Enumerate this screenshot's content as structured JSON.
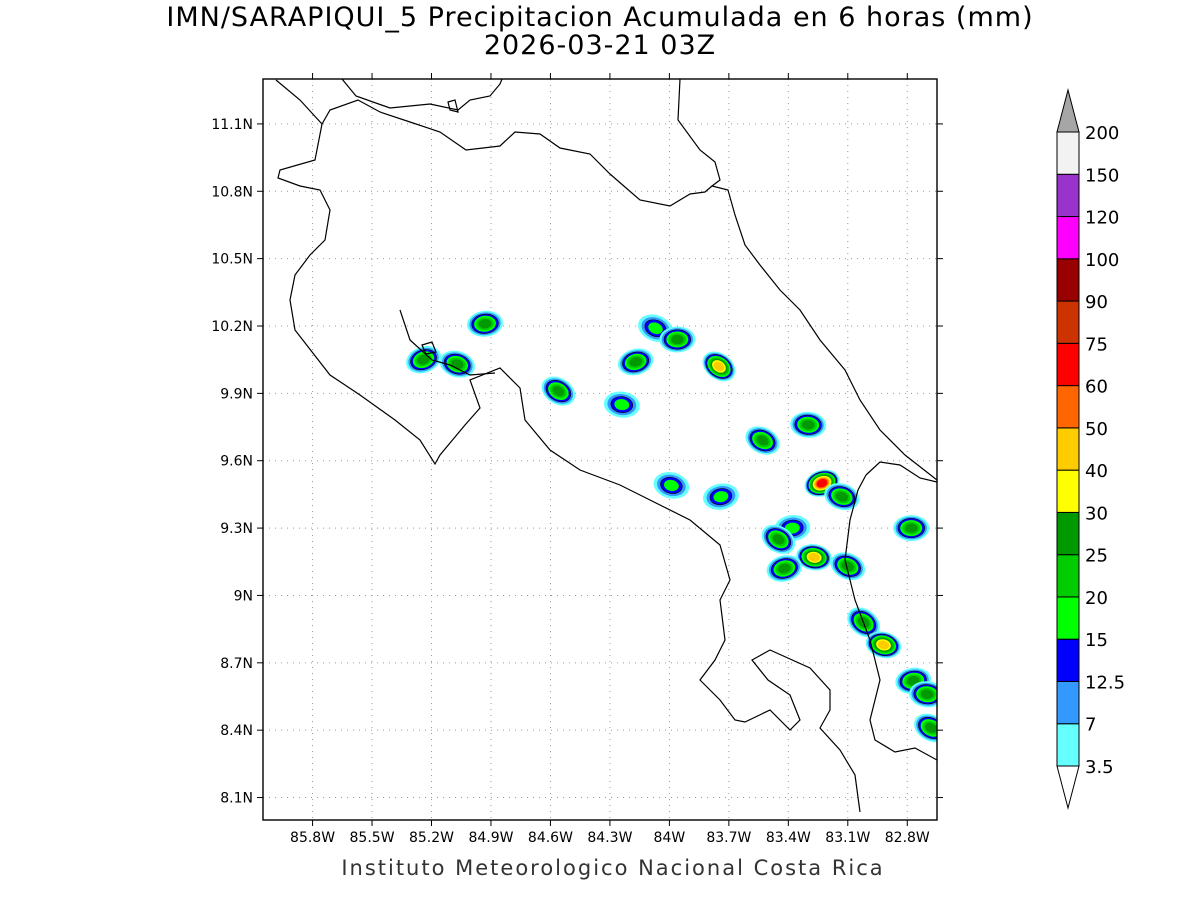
{
  "title": {
    "line1": "IMN/SARAPIQUI_5 Precipitacion Acumulada en 6 horas (mm)",
    "line2": "2026-03-21 03Z"
  },
  "credit": "Instituto Meteorologico Nacional Costa Rica",
  "map": {
    "lon_range": [
      -86.05,
      -82.65
    ],
    "lat_range": [
      8.0,
      11.3
    ],
    "lon_ticks": [
      {
        "value": -85.8,
        "label": "85.8W"
      },
      {
        "value": -85.5,
        "label": "85.5W"
      },
      {
        "value": -85.2,
        "label": "85.2W"
      },
      {
        "value": -84.9,
        "label": "84.9W"
      },
      {
        "value": -84.6,
        "label": "84.6W"
      },
      {
        "value": -84.3,
        "label": "84.3W"
      },
      {
        "value": -84.0,
        "label": "84W"
      },
      {
        "value": -83.7,
        "label": "83.7W"
      },
      {
        "value": -83.4,
        "label": "83.4W"
      },
      {
        "value": -83.1,
        "label": "83.1W"
      },
      {
        "value": -82.8,
        "label": "82.8W"
      }
    ],
    "lat_ticks": [
      {
        "value": 8.1,
        "label": "8.1N"
      },
      {
        "value": 8.4,
        "label": "8.4N"
      },
      {
        "value": 8.7,
        "label": "8.7N"
      },
      {
        "value": 9.0,
        "label": "9N"
      },
      {
        "value": 9.3,
        "label": "9.3N"
      },
      {
        "value": 9.6,
        "label": "9.6N"
      },
      {
        "value": 9.9,
        "label": "9.9N"
      },
      {
        "value": 10.2,
        "label": "10.2N"
      },
      {
        "value": 10.5,
        "label": "10.5N"
      },
      {
        "value": 10.8,
        "label": "10.8N"
      },
      {
        "value": 11.1,
        "label": "11.1N"
      }
    ],
    "grid": true,
    "precip_cells": [
      {
        "lon": -85.24,
        "lat": 10.05,
        "max_mm": 25
      },
      {
        "lon": -85.07,
        "lat": 10.03,
        "max_mm": 25
      },
      {
        "lon": -84.93,
        "lat": 10.21,
        "max_mm": 25
      },
      {
        "lon": -84.56,
        "lat": 9.91,
        "max_mm": 25
      },
      {
        "lon": -84.24,
        "lat": 9.85,
        "max_mm": 15
      },
      {
        "lon": -84.17,
        "lat": 10.04,
        "max_mm": 25
      },
      {
        "lon": -84.07,
        "lat": 10.19,
        "max_mm": 15
      },
      {
        "lon": -83.96,
        "lat": 10.14,
        "max_mm": 25
      },
      {
        "lon": -83.75,
        "lat": 10.02,
        "max_mm": 40
      },
      {
        "lon": -83.99,
        "lat": 9.49,
        "max_mm": 15
      },
      {
        "lon": -83.74,
        "lat": 9.44,
        "max_mm": 15
      },
      {
        "lon": -83.53,
        "lat": 9.69,
        "max_mm": 25
      },
      {
        "lon": -83.3,
        "lat": 9.76,
        "max_mm": 25
      },
      {
        "lon": -83.23,
        "lat": 9.5,
        "max_mm": 60
      },
      {
        "lon": -83.13,
        "lat": 9.44,
        "max_mm": 25
      },
      {
        "lon": -83.38,
        "lat": 9.3,
        "max_mm": 15
      },
      {
        "lon": -83.45,
        "lat": 9.25,
        "max_mm": 25
      },
      {
        "lon": -83.27,
        "lat": 9.17,
        "max_mm": 40
      },
      {
        "lon": -83.42,
        "lat": 9.12,
        "max_mm": 25
      },
      {
        "lon": -83.1,
        "lat": 9.13,
        "max_mm": 25
      },
      {
        "lon": -82.78,
        "lat": 9.3,
        "max_mm": 25
      },
      {
        "lon": -83.02,
        "lat": 8.88,
        "max_mm": 25
      },
      {
        "lon": -82.92,
        "lat": 8.78,
        "max_mm": 40
      },
      {
        "lon": -82.77,
        "lat": 8.62,
        "max_mm": 25
      },
      {
        "lon": -82.68,
        "lat": 8.41,
        "max_mm": 25
      },
      {
        "lon": -82.7,
        "lat": 8.56,
        "max_mm": 25
      }
    ]
  },
  "colorbar": {
    "levels": [
      {
        "value": "3.5",
        "color": "#66ffff"
      },
      {
        "value": "7",
        "color": "#3399ff"
      },
      {
        "value": "12.5",
        "color": "#0000ff"
      },
      {
        "value": "15",
        "color": "#00ff00"
      },
      {
        "value": "20",
        "color": "#00cc00"
      },
      {
        "value": "25",
        "color": "#009900"
      },
      {
        "value": "30",
        "color": "#ffff00"
      },
      {
        "value": "40",
        "color": "#ffcc00"
      },
      {
        "value": "50",
        "color": "#ff6600"
      },
      {
        "value": "60",
        "color": "#ff0000"
      },
      {
        "value": "75",
        "color": "#cc3300"
      },
      {
        "value": "90",
        "color": "#990000"
      },
      {
        "value": "100",
        "color": "#ff00ff"
      },
      {
        "value": "120",
        "color": "#9933cc"
      },
      {
        "value": "150",
        "color": "#f2f2f2"
      },
      {
        "value": "200",
        "color": "#a6a6a6"
      }
    ]
  }
}
